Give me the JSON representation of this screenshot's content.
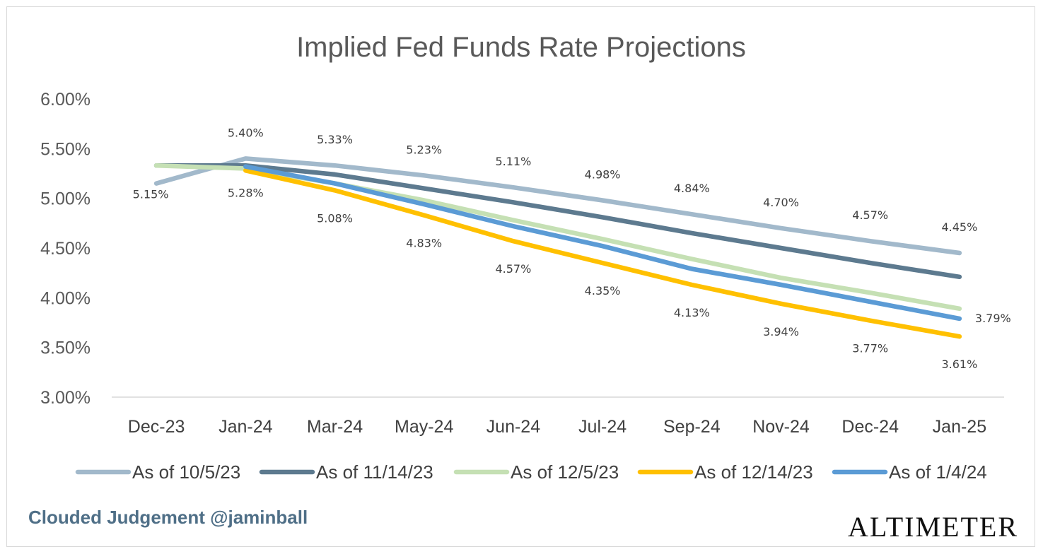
{
  "chart_data": {
    "type": "line",
    "title": "Implied Fed Funds Rate Projections",
    "categories": [
      "Dec-23",
      "Jan-24",
      "Mar-24",
      "May-24",
      "Jun-24",
      "Jul-24",
      "Sep-24",
      "Nov-24",
      "Dec-24",
      "Jan-25"
    ],
    "ylim": [
      3.0,
      6.0
    ],
    "yticks": [
      3.0,
      3.5,
      4.0,
      4.5,
      5.0,
      5.5,
      6.0
    ],
    "ytick_labels": [
      "3.00%",
      "3.50%",
      "4.00%",
      "4.50%",
      "5.00%",
      "5.50%",
      "6.00%"
    ],
    "legend_position": "bottom",
    "series": [
      {
        "name": "As of 10/5/23",
        "color": "#a2b9cb",
        "values": [
          5.15,
          5.4,
          5.33,
          5.23,
          5.11,
          4.98,
          4.84,
          4.7,
          4.57,
          4.45
        ],
        "labels": [
          "5.15%",
          "5.40%",
          "5.33%",
          "5.23%",
          "5.11%",
          "4.98%",
          "4.84%",
          "4.70%",
          "4.57%",
          "4.45%"
        ]
      },
      {
        "name": "As of 11/14/23",
        "color": "#5d7a8f",
        "values": [
          5.33,
          5.33,
          5.24,
          5.1,
          4.96,
          4.81,
          4.65,
          4.5,
          4.35,
          4.21
        ],
        "labels": []
      },
      {
        "name": "As of 12/5/23",
        "color": "#c5e0b4",
        "values": [
          5.33,
          5.3,
          5.15,
          4.98,
          4.78,
          4.59,
          4.39,
          4.2,
          4.05,
          3.89
        ],
        "labels": []
      },
      {
        "name": "As of 12/14/23",
        "color": "#ffc000",
        "values": [
          null,
          5.28,
          5.08,
          4.83,
          4.57,
          4.35,
          4.13,
          3.94,
          3.77,
          3.61
        ],
        "labels": [
          "",
          "5.28%",
          "5.08%",
          "4.83%",
          "4.57%",
          "4.35%",
          "4.13%",
          "3.94%",
          "3.77%",
          "3.61%"
        ]
      },
      {
        "name": "As of 1/4/24",
        "color": "#5b9bd5",
        "values": [
          null,
          5.32,
          5.15,
          4.94,
          4.72,
          4.52,
          4.29,
          4.13,
          3.96,
          3.79
        ],
        "labels": [
          "",
          "",
          "",
          "",
          "",
          "",
          "",
          "",
          "",
          "3.79%"
        ]
      }
    ]
  },
  "footer": {
    "left_text": "Clouded Judgement @jaminball",
    "right_logo_text": "ALTIMETER"
  }
}
